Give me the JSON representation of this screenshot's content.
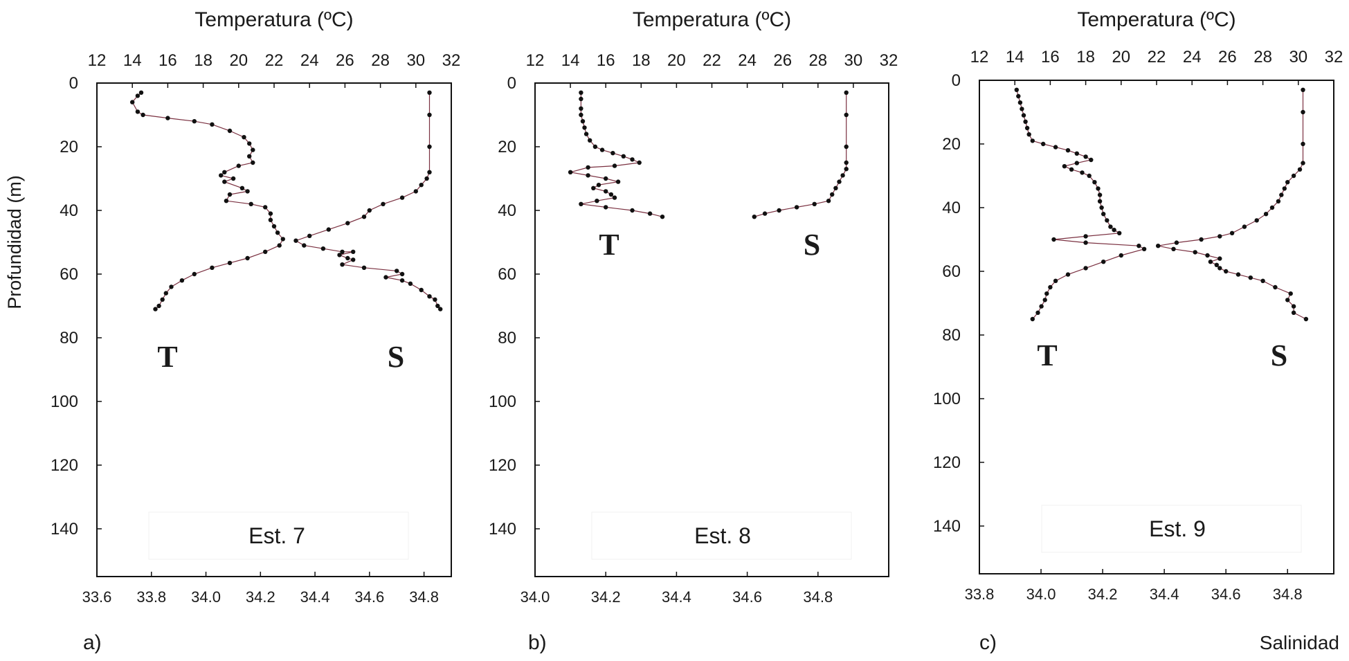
{
  "figure": {
    "ylabel": "Profundidad (m)",
    "xlabel_bottom_right": "Salinidad"
  },
  "chart_data": [
    {
      "type": "line",
      "panel_label": "a)",
      "station": "Est. 7",
      "title": "Temperatura (ºC)",
      "xlabel": "Temperatura (ºC)",
      "ylabel": "Profundidad (m)",
      "temp_lim": [
        12,
        32
      ],
      "temp_ticks": [
        "12",
        "14",
        "16",
        "18",
        "20",
        "22",
        "24",
        "26",
        "28",
        "30",
        "32"
      ],
      "sal_lim": [
        33.6,
        34.9
      ],
      "sal_ticks": [
        "33.6",
        "33.8",
        "34.0",
        "34.2",
        "34.4",
        "34.6",
        "34.8"
      ],
      "depth_lim": [
        0,
        155
      ],
      "depth_ticks": [
        "0",
        "20",
        "40",
        "60",
        "80",
        "100",
        "120",
        "140"
      ],
      "series_labels": {
        "T": "T",
        "S": "S"
      },
      "series": [
        {
          "name": "T",
          "axis": "temperature",
          "points": [
            [
              14.5,
              3
            ],
            [
              14.3,
              4
            ],
            [
              14,
              6
            ],
            [
              14.3,
              9
            ],
            [
              14.6,
              10
            ],
            [
              16,
              11
            ],
            [
              17.5,
              12
            ],
            [
              18.5,
              13
            ],
            [
              19.5,
              15
            ],
            [
              20.3,
              17
            ],
            [
              20.6,
              19
            ],
            [
              20.8,
              21
            ],
            [
              20.6,
              23
            ],
            [
              20.8,
              25
            ],
            [
              20.0,
              26
            ],
            [
              19.2,
              28
            ],
            [
              19.0,
              29
            ],
            [
              19.7,
              30
            ],
            [
              19.2,
              31
            ],
            [
              20.2,
              33
            ],
            [
              20.5,
              34
            ],
            [
              19.5,
              35
            ],
            [
              19.3,
              37
            ],
            [
              20.7,
              38
            ],
            [
              21.5,
              39
            ],
            [
              21.8,
              41
            ],
            [
              21.8,
              43
            ],
            [
              22.0,
              45
            ],
            [
              22.2,
              47
            ],
            [
              22.5,
              49
            ],
            [
              22.3,
              51
            ],
            [
              21.5,
              53
            ],
            [
              20.5,
              55
            ],
            [
              19.5,
              56.5
            ],
            [
              18.5,
              58
            ],
            [
              17.5,
              60
            ],
            [
              16.8,
              62
            ],
            [
              16.2,
              64
            ],
            [
              15.9,
              66
            ],
            [
              15.7,
              68
            ],
            [
              15.5,
              70
            ],
            [
              15.3,
              71
            ]
          ]
        },
        {
          "name": "S",
          "axis": "salinity",
          "points": [
            [
              34.82,
              3
            ],
            [
              34.82,
              10
            ],
            [
              34.82,
              20
            ],
            [
              34.82,
              28
            ],
            [
              34.81,
              30
            ],
            [
              34.79,
              32
            ],
            [
              34.77,
              34
            ],
            [
              34.72,
              36
            ],
            [
              34.65,
              38
            ],
            [
              34.6,
              40
            ],
            [
              34.58,
              42
            ],
            [
              34.52,
              44
            ],
            [
              34.45,
              46
            ],
            [
              34.38,
              48
            ],
            [
              34.33,
              49.5
            ],
            [
              34.36,
              51
            ],
            [
              34.43,
              52
            ],
            [
              34.5,
              53
            ],
            [
              34.54,
              53
            ],
            [
              34.49,
              54
            ],
            [
              34.52,
              55
            ],
            [
              34.54,
              55.5
            ],
            [
              34.5,
              57
            ],
            [
              34.58,
              58
            ],
            [
              34.7,
              59
            ],
            [
              34.72,
              60
            ],
            [
              34.66,
              61
            ],
            [
              34.72,
              62
            ],
            [
              34.75,
              63
            ],
            [
              34.79,
              65
            ],
            [
              34.82,
              67
            ],
            [
              34.84,
              68
            ],
            [
              34.85,
              70
            ],
            [
              34.86,
              71
            ]
          ]
        }
      ]
    },
    {
      "type": "line",
      "panel_label": "b)",
      "station": "Est. 8",
      "title": "Temperatura (ºC)",
      "xlabel": "Temperatura (ºC)",
      "ylabel": "",
      "temp_lim": [
        12,
        32
      ],
      "temp_ticks": [
        "12",
        "14",
        "16",
        "18",
        "20",
        "22",
        "24",
        "26",
        "28",
        "30",
        "32"
      ],
      "sal_lim": [
        34.0,
        35.0
      ],
      "sal_ticks": [
        "34.0",
        "34.2",
        "34.4",
        "34.6",
        "34.8"
      ],
      "depth_lim": [
        0,
        155
      ],
      "depth_ticks": [
        "0",
        "20",
        "40",
        "60",
        "80",
        "100",
        "120",
        "140"
      ],
      "series_labels": {
        "T": "T",
        "S": "S"
      },
      "series": [
        {
          "name": "T",
          "axis": "temperature",
          "points": [
            [
              14.6,
              3
            ],
            [
              14.6,
              5
            ],
            [
              14.6,
              8
            ],
            [
              14.6,
              10
            ],
            [
              14.7,
              12
            ],
            [
              14.8,
              14
            ],
            [
              14.9,
              16
            ],
            [
              15.1,
              18
            ],
            [
              15.4,
              20
            ],
            [
              15.8,
              21
            ],
            [
              16.4,
              22
            ],
            [
              17.0,
              23
            ],
            [
              17.5,
              24
            ],
            [
              17.9,
              25
            ],
            [
              16.5,
              26
            ],
            [
              15.0,
              26.5
            ],
            [
              14.0,
              28
            ],
            [
              15.0,
              29
            ],
            [
              16.0,
              30
            ],
            [
              16.7,
              31
            ],
            [
              15.6,
              32
            ],
            [
              15.3,
              33
            ],
            [
              16.0,
              34
            ],
            [
              16.3,
              35
            ],
            [
              16.5,
              36
            ],
            [
              15.5,
              37
            ],
            [
              14.6,
              38
            ],
            [
              16.0,
              39
            ],
            [
              17.5,
              40
            ],
            [
              18.5,
              41
            ],
            [
              19.2,
              42
            ]
          ]
        },
        {
          "name": "S",
          "axis": "salinity",
          "points": [
            [
              34.88,
              3
            ],
            [
              34.88,
              10
            ],
            [
              34.88,
              20
            ],
            [
              34.88,
              25
            ],
            [
              34.88,
              27
            ],
            [
              34.87,
              29
            ],
            [
              34.86,
              31
            ],
            [
              34.85,
              33
            ],
            [
              34.84,
              35
            ],
            [
              34.83,
              37
            ],
            [
              34.79,
              38
            ],
            [
              34.74,
              39
            ],
            [
              34.69,
              40
            ],
            [
              34.65,
              41
            ],
            [
              34.62,
              42
            ]
          ]
        }
      ]
    },
    {
      "type": "line",
      "panel_label": "c)",
      "station": "Est. 9",
      "title": "Temperatura (ºC)",
      "xlabel": "Salinidad",
      "ylabel": "",
      "temp_lim": [
        12,
        32
      ],
      "temp_ticks": [
        "12",
        "14",
        "16",
        "18",
        "20",
        "22",
        "24",
        "26",
        "28",
        "30",
        "32"
      ],
      "sal_lim": [
        33.8,
        34.95
      ],
      "sal_ticks": [
        "33.8",
        "34.0",
        "34.2",
        "34.4",
        "34.6",
        "34.8"
      ],
      "depth_lim": [
        0,
        155
      ],
      "depth_ticks": [
        "0",
        "20",
        "40",
        "60",
        "80",
        "100",
        "120",
        "140"
      ],
      "series_labels": {
        "T": "T",
        "S": "S"
      },
      "series": [
        {
          "name": "T",
          "axis": "temperature",
          "points": [
            [
              14.1,
              3
            ],
            [
              14.2,
              5
            ],
            [
              14.3,
              7
            ],
            [
              14.4,
              9
            ],
            [
              14.5,
              11
            ],
            [
              14.6,
              13
            ],
            [
              14.7,
              15
            ],
            [
              14.8,
              17
            ],
            [
              15.0,
              19
            ],
            [
              15.6,
              20
            ],
            [
              16.3,
              21
            ],
            [
              17.0,
              22
            ],
            [
              17.5,
              23
            ],
            [
              18.0,
              24
            ],
            [
              18.3,
              25
            ],
            [
              17.5,
              26
            ],
            [
              16.8,
              27
            ],
            [
              17.2,
              28
            ],
            [
              17.8,
              29
            ],
            [
              18.2,
              30
            ],
            [
              18.5,
              32
            ],
            [
              18.7,
              34
            ],
            [
              18.8,
              36
            ],
            [
              18.8,
              38
            ],
            [
              18.9,
              40
            ],
            [
              19.0,
              42
            ],
            [
              19.2,
              44
            ],
            [
              19.4,
              46
            ],
            [
              19.6,
              47
            ],
            [
              19.9,
              48
            ],
            [
              18.0,
              49
            ],
            [
              16.2,
              50
            ],
            [
              18.0,
              51
            ],
            [
              21.0,
              52
            ],
            [
              21.3,
              53
            ],
            [
              20.0,
              55
            ],
            [
              19.0,
              57
            ],
            [
              18.0,
              59
            ],
            [
              17.0,
              61
            ],
            [
              16.3,
              63
            ],
            [
              16.0,
              65
            ],
            [
              15.8,
              67
            ],
            [
              15.7,
              69
            ],
            [
              15.5,
              71
            ],
            [
              15.3,
              73
            ],
            [
              15.0,
              75
            ]
          ]
        },
        {
          "name": "S",
          "axis": "salinity",
          "points": [
            [
              34.85,
              3
            ],
            [
              34.85,
              10
            ],
            [
              34.85,
              20
            ],
            [
              34.85,
              26
            ],
            [
              34.84,
              28
            ],
            [
              34.82,
              30
            ],
            [
              34.8,
              32
            ],
            [
              34.79,
              34
            ],
            [
              34.78,
              36
            ],
            [
              34.77,
              38
            ],
            [
              34.75,
              40
            ],
            [
              34.73,
              42
            ],
            [
              34.7,
              44
            ],
            [
              34.66,
              46
            ],
            [
              34.62,
              48
            ],
            [
              34.58,
              49
            ],
            [
              34.52,
              50
            ],
            [
              34.44,
              51
            ],
            [
              34.38,
              52
            ],
            [
              34.43,
              53
            ],
            [
              34.5,
              54
            ],
            [
              34.54,
              55
            ],
            [
              34.58,
              56
            ],
            [
              34.55,
              57
            ],
            [
              34.57,
              58
            ],
            [
              34.58,
              59
            ],
            [
              34.6,
              60
            ],
            [
              34.64,
              61
            ],
            [
              34.68,
              62
            ],
            [
              34.72,
              63
            ],
            [
              34.76,
              65
            ],
            [
              34.81,
              67
            ],
            [
              34.8,
              69
            ],
            [
              34.82,
              71
            ],
            [
              34.82,
              73
            ],
            [
              34.86,
              75
            ]
          ]
        }
      ]
    }
  ]
}
